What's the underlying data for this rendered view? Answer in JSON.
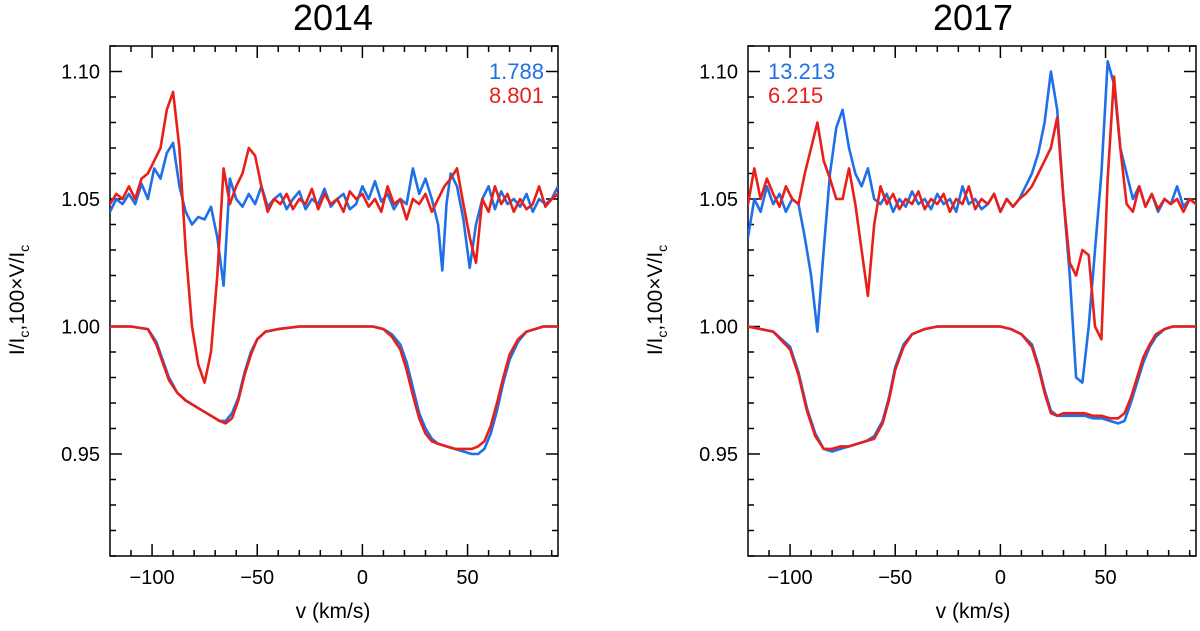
{
  "chart_data": [
    {
      "type": "line",
      "title": "2014",
      "xlabel": "v (km/s)",
      "ylabel": "I/I_c,100×V/I_c",
      "xlim": [
        -120,
        93
      ],
      "ylim": [
        0.91,
        1.11
      ],
      "xticks": [
        -100,
        -50,
        0,
        50
      ],
      "xtick_labels": [
        "−100",
        "−50",
        "0",
        "50"
      ],
      "yticks": [
        0.95,
        1.0,
        1.05,
        1.1
      ],
      "ytick_labels": [
        "0.95",
        "1.00",
        "1.05",
        "1.10"
      ],
      "annotations": [
        {
          "text": "1.788",
          "color": "#1f6fe8"
        },
        {
          "text": "8.801",
          "color": "#e8201a"
        }
      ],
      "series": [
        {
          "name": "Stokes V (blue)",
          "color": "#1f6fe8",
          "x": [
            -120,
            -117,
            -114,
            -111,
            -108,
            -105,
            -102,
            -99,
            -96,
            -93,
            -90,
            -87,
            -84,
            -81,
            -78,
            -75,
            -72,
            -69,
            -66,
            -63,
            -60,
            -57,
            -54,
            -51,
            -48,
            -45,
            -42,
            -39,
            -36,
            -33,
            -30,
            -27,
            -24,
            -21,
            -18,
            -15,
            -12,
            -9,
            -6,
            -3,
            0,
            3,
            6,
            9,
            12,
            15,
            18,
            21,
            24,
            27,
            30,
            33,
            36,
            38,
            40,
            42,
            45,
            48,
            51,
            54,
            57,
            60,
            63,
            66,
            69,
            72,
            75,
            78,
            81,
            84,
            87,
            90,
            93
          ],
          "y": [
            1.045,
            1.05,
            1.048,
            1.052,
            1.048,
            1.056,
            1.05,
            1.062,
            1.058,
            1.068,
            1.072,
            1.055,
            1.045,
            1.04,
            1.043,
            1.042,
            1.047,
            1.035,
            1.016,
            1.058,
            1.05,
            1.047,
            1.052,
            1.048,
            1.055,
            1.047,
            1.05,
            1.052,
            1.046,
            1.05,
            1.053,
            1.046,
            1.05,
            1.048,
            1.054,
            1.047,
            1.05,
            1.052,
            1.046,
            1.048,
            1.055,
            1.05,
            1.057,
            1.049,
            1.052,
            1.046,
            1.05,
            1.048,
            1.062,
            1.052,
            1.058,
            1.05,
            1.04,
            1.022,
            1.048,
            1.06,
            1.055,
            1.042,
            1.023,
            1.04,
            1.05,
            1.055,
            1.046,
            1.053,
            1.048,
            1.05,
            1.047,
            1.052,
            1.045,
            1.05,
            1.048,
            1.05,
            1.055
          ]
        },
        {
          "name": "Stokes V (red)",
          "color": "#e8201a",
          "x": [
            -120,
            -117,
            -114,
            -111,
            -108,
            -105,
            -102,
            -99,
            -96,
            -93,
            -90,
            -87,
            -84,
            -81,
            -78,
            -75,
            -72,
            -69,
            -66,
            -63,
            -60,
            -57,
            -54,
            -51,
            -48,
            -45,
            -42,
            -39,
            -36,
            -33,
            -30,
            -27,
            -24,
            -21,
            -18,
            -15,
            -12,
            -9,
            -6,
            -3,
            0,
            3,
            6,
            9,
            12,
            15,
            18,
            21,
            24,
            27,
            30,
            33,
            36,
            39,
            42,
            45,
            48,
            51,
            54,
            57,
            60,
            63,
            66,
            69,
            72,
            75,
            78,
            81,
            84,
            87,
            90,
            93
          ],
          "y": [
            1.048,
            1.052,
            1.05,
            1.055,
            1.05,
            1.058,
            1.06,
            1.065,
            1.07,
            1.085,
            1.092,
            1.07,
            1.03,
            1.0,
            0.985,
            0.978,
            0.99,
            1.02,
            1.062,
            1.048,
            1.055,
            1.06,
            1.07,
            1.067,
            1.055,
            1.045,
            1.05,
            1.048,
            1.052,
            1.046,
            1.05,
            1.048,
            1.054,
            1.046,
            1.052,
            1.048,
            1.05,
            1.045,
            1.053,
            1.05,
            1.052,
            1.047,
            1.05,
            1.045,
            1.055,
            1.048,
            1.05,
            1.042,
            1.05,
            1.048,
            1.052,
            1.045,
            1.05,
            1.055,
            1.058,
            1.062,
            1.048,
            1.035,
            1.025,
            1.05,
            1.045,
            1.055,
            1.048,
            1.052,
            1.045,
            1.05,
            1.046,
            1.048,
            1.055,
            1.047,
            1.05,
            1.052
          ]
        },
        {
          "name": "Stokes I (blue)",
          "color": "#1f6fe8",
          "x": [
            -120,
            -110,
            -102,
            -98,
            -95,
            -92,
            -88,
            -84,
            -80,
            -76,
            -72,
            -68,
            -65,
            -62,
            -59,
            -56,
            -53,
            -50,
            -46,
            -40,
            -30,
            -20,
            -10,
            0,
            5,
            10,
            14,
            18,
            21,
            24,
            27,
            30,
            33,
            36,
            40,
            44,
            48,
            52,
            55,
            58,
            61,
            64,
            67,
            70,
            74,
            78,
            82,
            86,
            90,
            93
          ],
          "y": [
            1.0,
            1.0,
            0.999,
            0.994,
            0.987,
            0.98,
            0.974,
            0.971,
            0.969,
            0.967,
            0.965,
            0.963,
            0.963,
            0.966,
            0.972,
            0.982,
            0.99,
            0.995,
            0.998,
            0.999,
            1.0,
            1.0,
            1.0,
            1.0,
            1.0,
            0.999,
            0.997,
            0.993,
            0.986,
            0.976,
            0.966,
            0.96,
            0.956,
            0.954,
            0.953,
            0.952,
            0.951,
            0.95,
            0.95,
            0.952,
            0.958,
            0.967,
            0.978,
            0.987,
            0.994,
            0.998,
            0.999,
            1.0,
            1.0,
            1.0
          ]
        },
        {
          "name": "Stokes I (red)",
          "color": "#e8201a",
          "x": [
            -120,
            -110,
            -102,
            -98,
            -95,
            -92,
            -88,
            -84,
            -80,
            -76,
            -72,
            -68,
            -65,
            -62,
            -59,
            -56,
            -53,
            -50,
            -46,
            -40,
            -30,
            -20,
            -10,
            0,
            5,
            10,
            14,
            18,
            21,
            24,
            27,
            30,
            33,
            36,
            40,
            44,
            48,
            52,
            55,
            58,
            61,
            64,
            67,
            70,
            74,
            78,
            82,
            86,
            90,
            93
          ],
          "y": [
            1.0,
            1.0,
            0.999,
            0.993,
            0.986,
            0.979,
            0.974,
            0.971,
            0.969,
            0.967,
            0.965,
            0.963,
            0.962,
            0.964,
            0.971,
            0.981,
            0.989,
            0.995,
            0.998,
            0.999,
            1.0,
            1.0,
            1.0,
            1.0,
            1.0,
            0.999,
            0.996,
            0.991,
            0.983,
            0.973,
            0.964,
            0.958,
            0.955,
            0.954,
            0.953,
            0.952,
            0.952,
            0.952,
            0.953,
            0.955,
            0.961,
            0.97,
            0.98,
            0.989,
            0.995,
            0.998,
            0.999,
            1.0,
            1.0,
            1.0
          ]
        }
      ]
    },
    {
      "type": "line",
      "title": "2017",
      "xlabel": "v (km/s)",
      "ylabel": "I/I_c,100×V/I_c",
      "xlim": [
        -120,
        93
      ],
      "ylim": [
        0.91,
        1.11
      ],
      "xticks": [
        -100,
        -50,
        0,
        50
      ],
      "xtick_labels": [
        "−100",
        "−50",
        "0",
        "50"
      ],
      "yticks": [
        0.95,
        1.0,
        1.05,
        1.1
      ],
      "ytick_labels": [
        "0.95",
        "1.00",
        "1.05",
        "1.10"
      ],
      "annotations": [
        {
          "text": "13.213",
          "color": "#1f6fe8"
        },
        {
          "text": "6.215",
          "color": "#e8201a"
        }
      ],
      "series": [
        {
          "name": "Stokes V (blue)",
          "color": "#1f6fe8",
          "x": [
            -120,
            -117,
            -114,
            -111,
            -108,
            -105,
            -102,
            -99,
            -96,
            -93,
            -90,
            -87,
            -84,
            -81,
            -78,
            -75,
            -72,
            -69,
            -66,
            -63,
            -60,
            -57,
            -54,
            -51,
            -48,
            -45,
            -42,
            -39,
            -36,
            -33,
            -30,
            -27,
            -24,
            -21,
            -18,
            -15,
            -12,
            -9,
            -6,
            -3,
            0,
            3,
            6,
            9,
            12,
            15,
            18,
            21,
            24,
            27,
            30,
            33,
            36,
            39,
            42,
            45,
            48,
            51,
            54,
            57,
            60,
            63,
            66,
            69,
            72,
            75,
            78,
            81,
            84,
            87,
            90,
            93
          ],
          "y": [
            1.035,
            1.05,
            1.045,
            1.055,
            1.048,
            1.052,
            1.045,
            1.05,
            1.048,
            1.035,
            1.02,
            0.998,
            1.03,
            1.06,
            1.078,
            1.085,
            1.07,
            1.06,
            1.055,
            1.062,
            1.05,
            1.048,
            1.052,
            1.045,
            1.05,
            1.047,
            1.053,
            1.048,
            1.05,
            1.046,
            1.052,
            1.048,
            1.05,
            1.045,
            1.055,
            1.048,
            1.05,
            1.046,
            1.048,
            1.052,
            1.045,
            1.05,
            1.047,
            1.05,
            1.055,
            1.06,
            1.068,
            1.08,
            1.1,
            1.085,
            1.05,
            1.02,
            0.98,
            0.978,
            1.0,
            1.03,
            1.06,
            1.104,
            1.095,
            1.07,
            1.06,
            1.05,
            1.055,
            1.047,
            1.052,
            1.045,
            1.05,
            1.048,
            1.055,
            1.047,
            1.05,
            1.048
          ]
        },
        {
          "name": "Stokes V (red)",
          "color": "#e8201a",
          "x": [
            -120,
            -117,
            -114,
            -111,
            -108,
            -105,
            -102,
            -99,
            -96,
            -93,
            -90,
            -87,
            -84,
            -81,
            -78,
            -75,
            -72,
            -69,
            -66,
            -63,
            -60,
            -57,
            -54,
            -51,
            -48,
            -45,
            -42,
            -39,
            -36,
            -33,
            -30,
            -27,
            -24,
            -21,
            -18,
            -15,
            -12,
            -9,
            -6,
            -3,
            0,
            3,
            6,
            9,
            12,
            15,
            18,
            21,
            24,
            27,
            30,
            33,
            36,
            39,
            42,
            45,
            48,
            51,
            54,
            57,
            60,
            63,
            66,
            69,
            72,
            75,
            78,
            81,
            84,
            87,
            90,
            93
          ],
          "y": [
            1.048,
            1.062,
            1.05,
            1.058,
            1.052,
            1.047,
            1.055,
            1.05,
            1.048,
            1.06,
            1.07,
            1.08,
            1.065,
            1.058,
            1.05,
            1.05,
            1.062,
            1.048,
            1.03,
            1.012,
            1.04,
            1.055,
            1.048,
            1.052,
            1.046,
            1.05,
            1.048,
            1.053,
            1.046,
            1.05,
            1.048,
            1.052,
            1.045,
            1.05,
            1.048,
            1.055,
            1.046,
            1.05,
            1.048,
            1.052,
            1.045,
            1.05,
            1.047,
            1.05,
            1.052,
            1.055,
            1.06,
            1.065,
            1.07,
            1.082,
            1.05,
            1.025,
            1.02,
            1.03,
            1.028,
            1.0,
            0.995,
            1.058,
            1.098,
            1.07,
            1.048,
            1.045,
            1.055,
            1.047,
            1.052,
            1.046,
            1.05,
            1.048,
            1.05,
            1.045,
            1.05,
            1.048
          ]
        },
        {
          "name": "Stokes I (blue)",
          "color": "#1f6fe8",
          "x": [
            -120,
            -108,
            -100,
            -96,
            -92,
            -88,
            -84,
            -80,
            -76,
            -72,
            -68,
            -64,
            -60,
            -56,
            -53,
            -50,
            -46,
            -42,
            -36,
            -30,
            -20,
            -10,
            0,
            5,
            10,
            15,
            18,
            21,
            24,
            27,
            30,
            33,
            36,
            40,
            44,
            48,
            52,
            56,
            59,
            62,
            65,
            68,
            71,
            74,
            78,
            82,
            86,
            90,
            93
          ],
          "y": [
            1.0,
            0.998,
            0.992,
            0.982,
            0.968,
            0.958,
            0.952,
            0.951,
            0.952,
            0.953,
            0.954,
            0.955,
            0.957,
            0.963,
            0.972,
            0.984,
            0.993,
            0.997,
            0.999,
            1.0,
            1.0,
            1.0,
            1.0,
            0.999,
            0.997,
            0.993,
            0.985,
            0.975,
            0.967,
            0.965,
            0.965,
            0.965,
            0.965,
            0.965,
            0.964,
            0.964,
            0.963,
            0.962,
            0.963,
            0.97,
            0.978,
            0.986,
            0.992,
            0.996,
            0.999,
            1.0,
            1.0,
            1.0,
            1.0
          ]
        },
        {
          "name": "Stokes I (red)",
          "color": "#e8201a",
          "x": [
            -120,
            -108,
            -100,
            -96,
            -92,
            -88,
            -84,
            -80,
            -76,
            -72,
            -68,
            -64,
            -60,
            -56,
            -53,
            -50,
            -46,
            -42,
            -36,
            -30,
            -20,
            -10,
            0,
            5,
            10,
            15,
            18,
            21,
            24,
            27,
            30,
            33,
            36,
            40,
            44,
            48,
            52,
            56,
            59,
            62,
            65,
            68,
            71,
            74,
            78,
            82,
            86,
            90,
            93
          ],
          "y": [
            1.0,
            0.998,
            0.991,
            0.981,
            0.967,
            0.957,
            0.952,
            0.952,
            0.953,
            0.953,
            0.954,
            0.955,
            0.956,
            0.962,
            0.971,
            0.983,
            0.992,
            0.997,
            0.999,
            1.0,
            1.0,
            1.0,
            1.0,
            0.999,
            0.997,
            0.992,
            0.984,
            0.974,
            0.966,
            0.965,
            0.966,
            0.966,
            0.966,
            0.966,
            0.965,
            0.965,
            0.964,
            0.964,
            0.966,
            0.972,
            0.98,
            0.988,
            0.993,
            0.997,
            0.999,
            1.0,
            1.0,
            1.0,
            1.0
          ]
        }
      ]
    }
  ]
}
